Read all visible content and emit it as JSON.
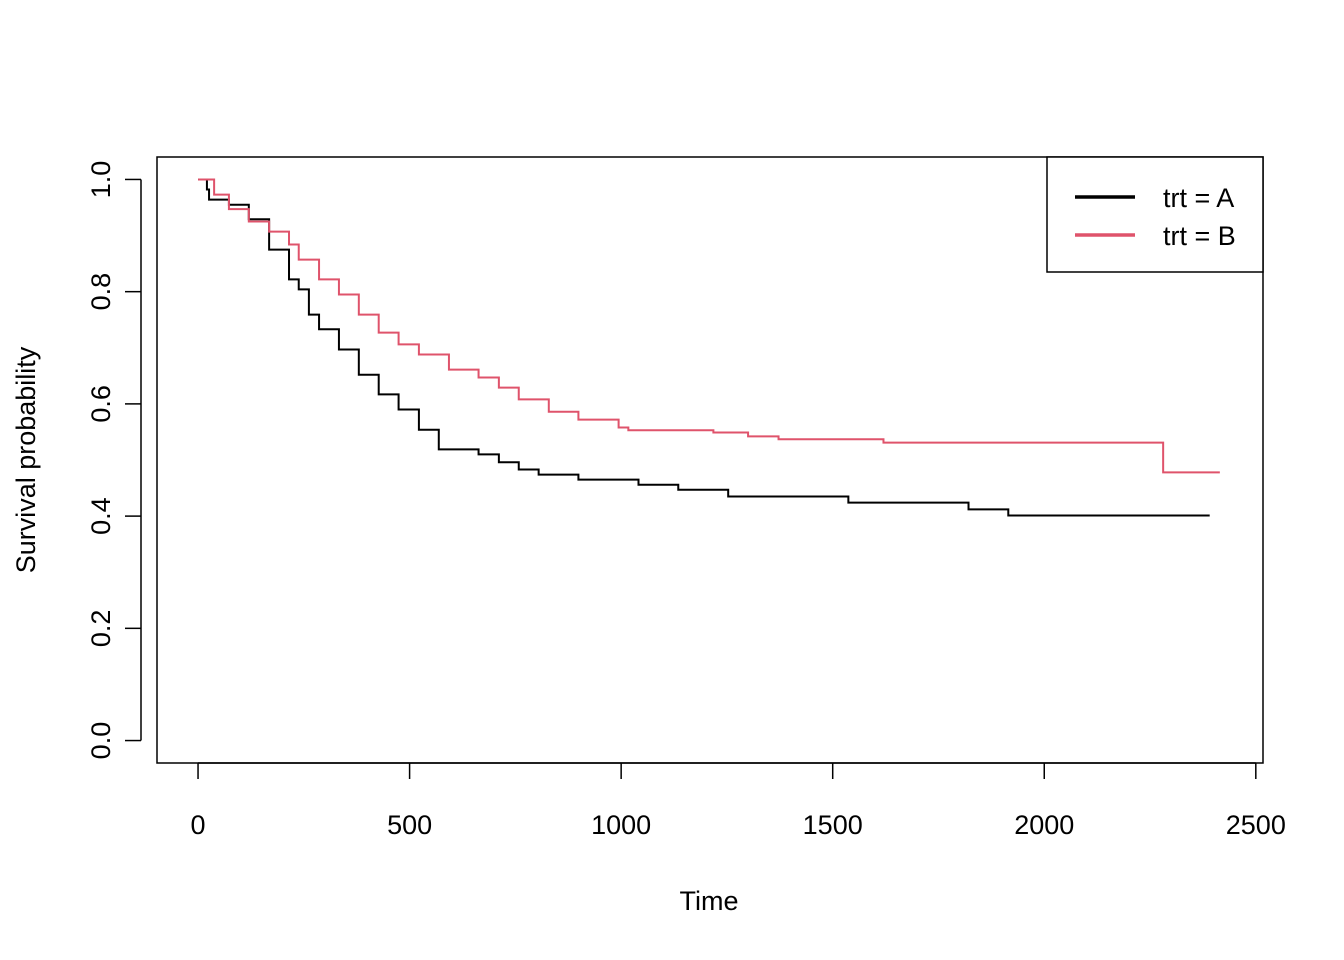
{
  "chart_data": {
    "type": "step",
    "x_label": "Time",
    "y_label": "Survival probability",
    "xlim": [
      -97,
      2517
    ],
    "ylim": [
      -0.04,
      1.04
    ],
    "xticks": [
      0,
      500,
      1000,
      1500,
      2000,
      2500
    ],
    "yticks": [
      {
        "value": 0,
        "label": "0.0"
      },
      0.2,
      0.4,
      0.6,
      0.8,
      {
        "value": 1,
        "label": "1.0"
      }
    ],
    "legend": "topright",
    "series": [
      {
        "name": "trt = A",
        "color": "#000000",
        "x": [
          0,
          21,
          26,
          73,
          120,
          168,
          215,
          238,
          262,
          286,
          333,
          380,
          427,
          474,
          522,
          569,
          663,
          711,
          758,
          805,
          899,
          1041,
          1135,
          1253,
          1537,
          1821,
          1915,
          2391
        ],
        "values": [
          1.0,
          0.982,
          0.964,
          0.955,
          0.929,
          0.875,
          0.822,
          0.804,
          0.759,
          0.733,
          0.697,
          0.652,
          0.617,
          0.59,
          0.554,
          0.519,
          0.51,
          0.496,
          0.483,
          0.474,
          0.465,
          0.456,
          0.447,
          0.435,
          0.424,
          0.412,
          0.401,
          0.401
        ]
      },
      {
        "name": "trt = B",
        "color": "#df536b",
        "x": [
          0,
          38,
          73,
          120,
          168,
          215,
          238,
          286,
          333,
          380,
          427,
          474,
          522,
          593,
          663,
          711,
          758,
          829,
          899,
          994,
          1017,
          1218,
          1300,
          1372,
          1620,
          2281,
          2415
        ],
        "values": [
          1.0,
          0.973,
          0.947,
          0.925,
          0.907,
          0.884,
          0.857,
          0.822,
          0.795,
          0.759,
          0.727,
          0.706,
          0.688,
          0.661,
          0.647,
          0.629,
          0.608,
          0.586,
          0.572,
          0.558,
          0.553,
          0.549,
          0.542,
          0.537,
          0.531,
          0.478,
          0.478
        ]
      }
    ]
  }
}
